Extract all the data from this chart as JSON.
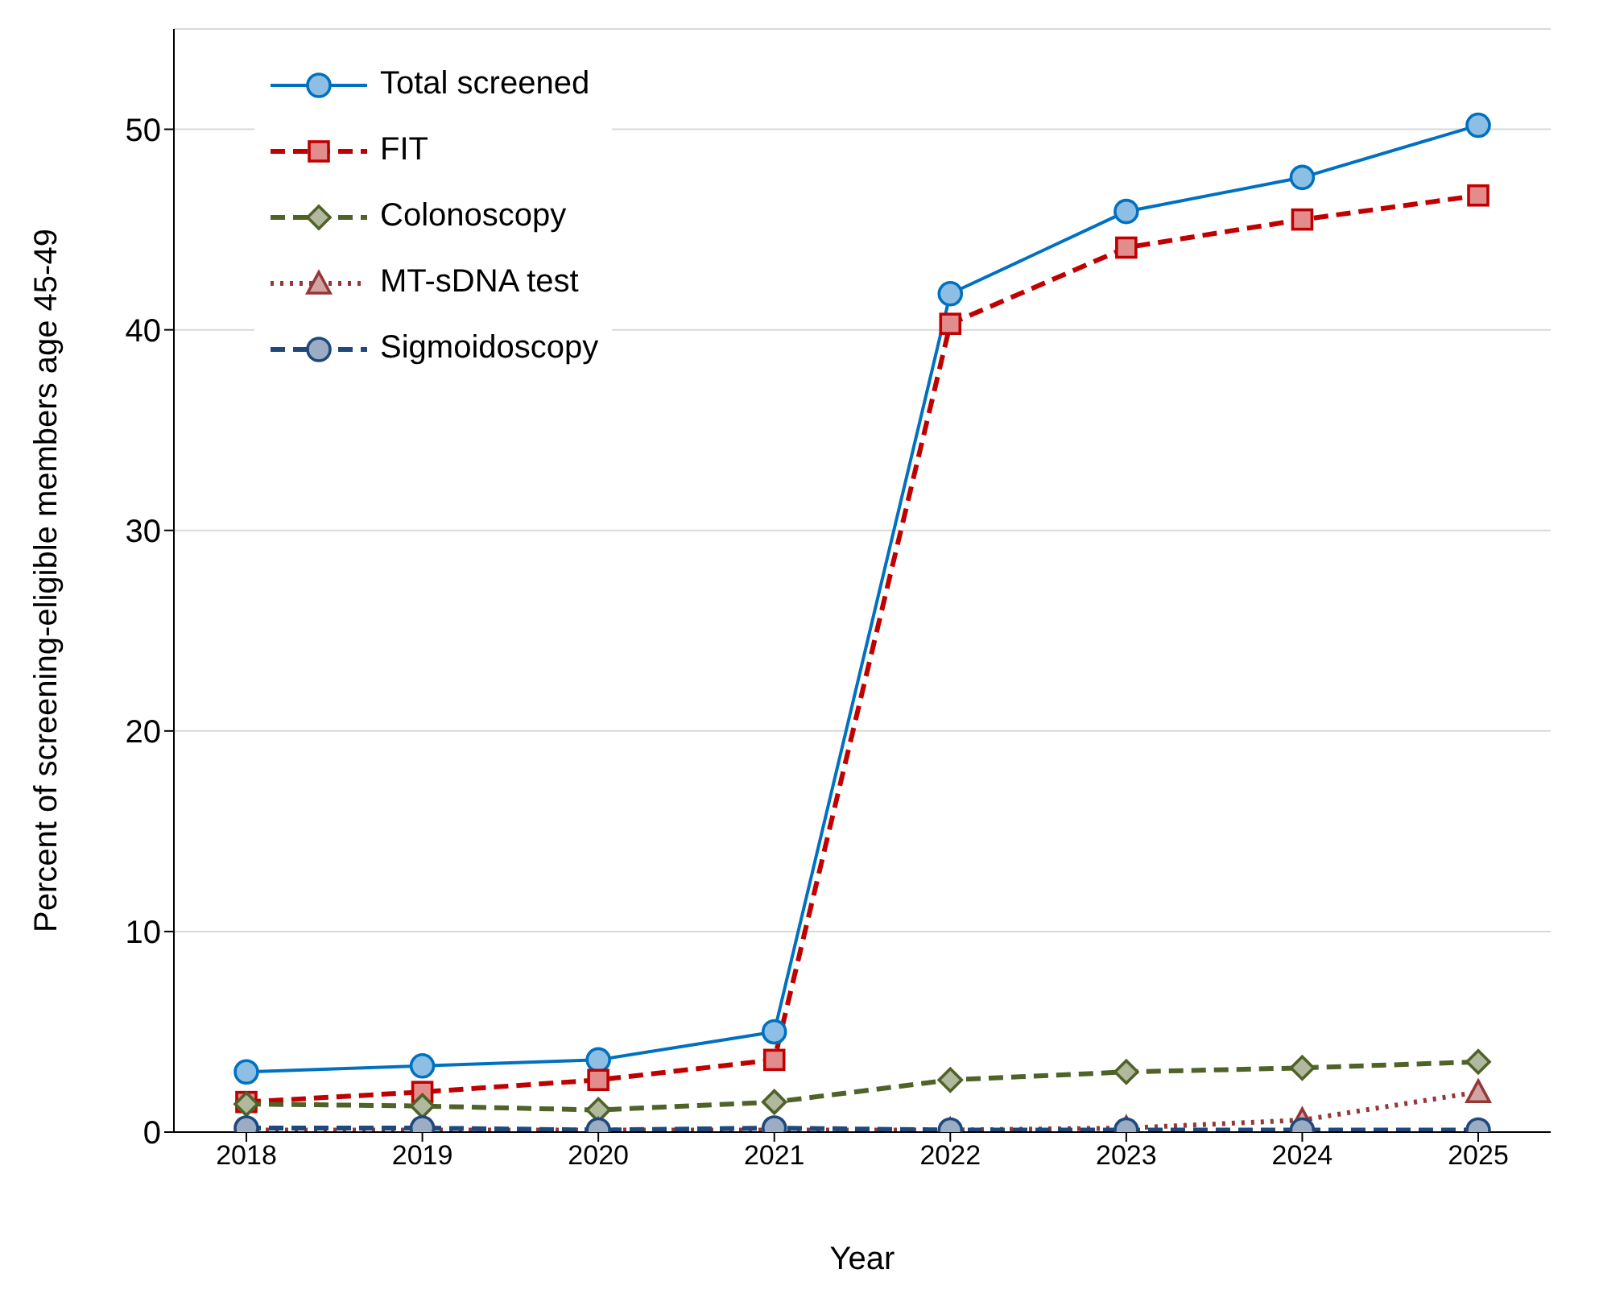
{
  "chart_data": {
    "type": "line",
    "xlabel": "Year",
    "ylabel": "Percent of screening-eligible members age 45-49",
    "categories": [
      "2018",
      "2019",
      "2020",
      "2021",
      "2022",
      "2023",
      "2024",
      "2025"
    ],
    "ylim": [
      0,
      55
    ],
    "yticks": [
      0,
      10,
      20,
      30,
      40,
      50
    ],
    "grid": "y",
    "legend": "top left",
    "series": [
      {
        "name": "Total screened",
        "color": "#0070c0",
        "marker": "circle",
        "line_style": "solid",
        "values": [
          3.0,
          3.3,
          3.6,
          5.0,
          41.8,
          45.9,
          47.6,
          50.2
        ]
      },
      {
        "name": "FIT",
        "color": "#c00000",
        "marker": "square",
        "line_style": "dashed",
        "values": [
          1.5,
          2.0,
          2.6,
          3.6,
          40.3,
          44.1,
          45.5,
          46.7
        ]
      },
      {
        "name": "Colonoscopy",
        "color": "#4f6228",
        "marker": "diamond",
        "line_style": "dashed",
        "values": [
          1.4,
          1.3,
          1.1,
          1.5,
          2.6,
          3.0,
          3.2,
          3.5
        ]
      },
      {
        "name": "MT-sDNA test",
        "color": "#953735",
        "marker": "triangle",
        "line_style": "dotted",
        "values": [
          0.1,
          0.1,
          0.1,
          0.1,
          0.1,
          0.2,
          0.6,
          2.0
        ]
      },
      {
        "name": "Sigmoidoscopy",
        "color": "#1f497d",
        "marker": "circle",
        "line_style": "dashed",
        "values": [
          0.2,
          0.2,
          0.1,
          0.2,
          0.1,
          0.1,
          0.1,
          0.1
        ]
      }
    ]
  }
}
